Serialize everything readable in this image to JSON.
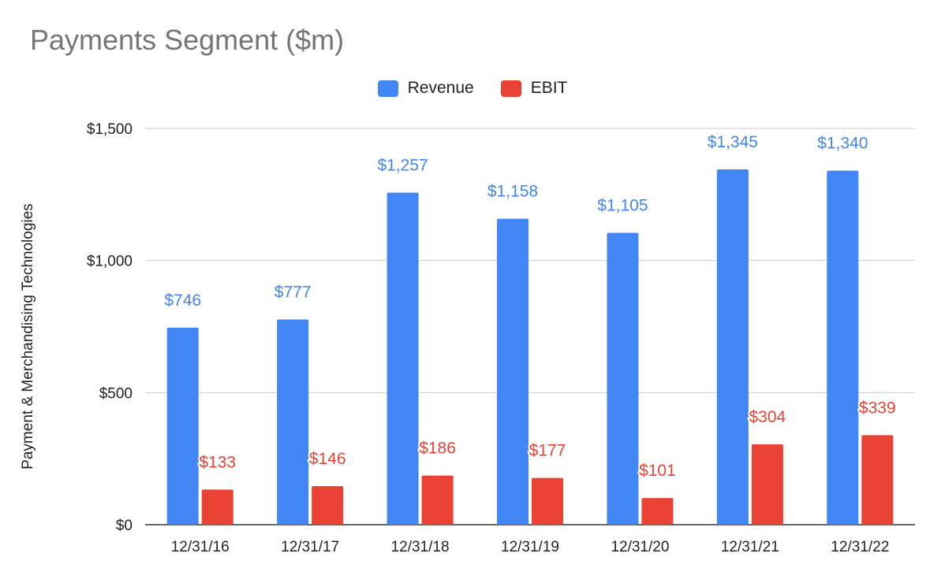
{
  "chart_data": {
    "type": "bar",
    "title": "Payments Segment ($m)",
    "ylabel": "Payment & Merchandising Technologies",
    "xlabel": "",
    "categories": [
      "12/31/16",
      "12/31/17",
      "12/31/18",
      "12/31/19",
      "12/31/20",
      "12/31/21",
      "12/31/22"
    ],
    "series": [
      {
        "name": "Revenue",
        "color": "#4285f4",
        "values": [
          746,
          777,
          1257,
          1158,
          1105,
          1345,
          1340
        ],
        "labels": [
          "$746",
          "$777",
          "$1,257",
          "$1,158",
          "$1,105",
          "$1,345",
          "$1,340"
        ]
      },
      {
        "name": "EBIT",
        "color": "#ea4335",
        "values": [
          133,
          146,
          186,
          177,
          101,
          304,
          339
        ],
        "labels": [
          "$133",
          "$146",
          "$186",
          "$177",
          "$101",
          "$304",
          "$339"
        ]
      }
    ],
    "ylim": [
      0,
      1500
    ],
    "yticks": [
      0,
      500,
      1000,
      1500
    ],
    "ytick_labels": [
      "$0",
      "$500",
      "$1,000",
      "$1,500"
    ],
    "grid": true,
    "legend_position": "top-center"
  }
}
